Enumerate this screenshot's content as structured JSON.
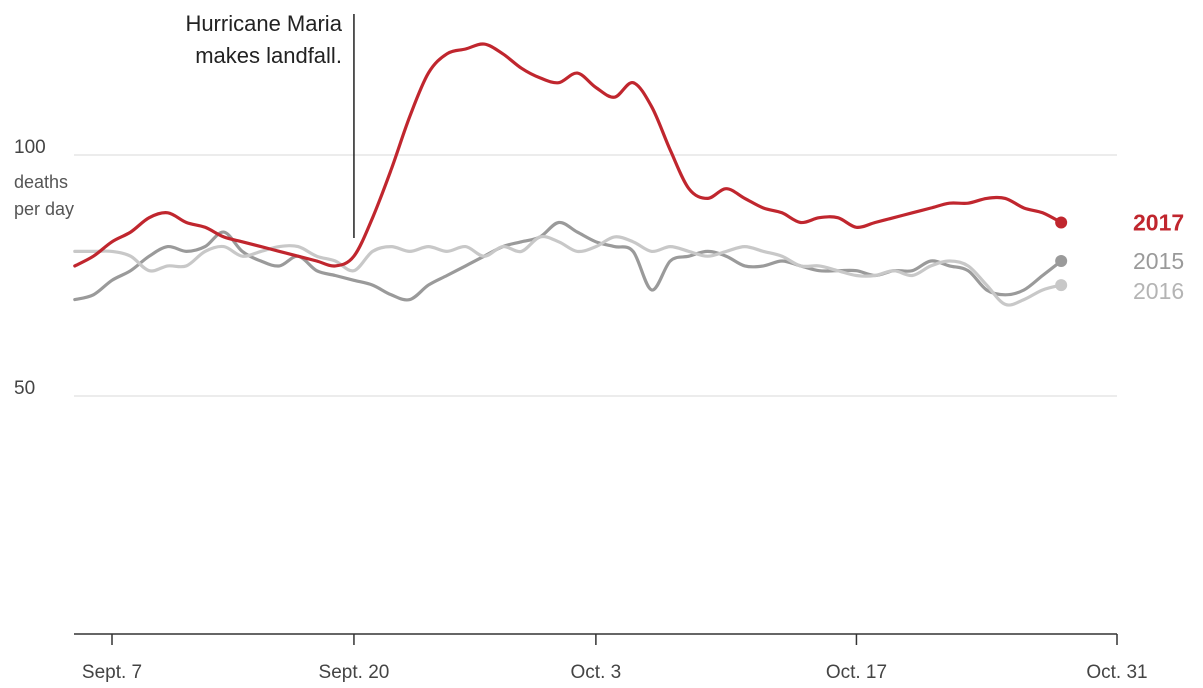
{
  "chart_data": {
    "type": "line",
    "ylabel_unit": [
      "deaths",
      "per day"
    ],
    "y_ticks": [
      50,
      100
    ],
    "ylim": [
      0,
      130
    ],
    "x_ticks": [
      {
        "day": 5,
        "label": "Sept. 7"
      },
      {
        "day": 18,
        "label": "Sept. 20"
      },
      {
        "day": 31,
        "label": "Oct. 3"
      },
      {
        "day": 45,
        "label": "Oct. 17"
      },
      {
        "day": 59,
        "label": "Oct. 31"
      }
    ],
    "xlim": [
      3,
      59
    ],
    "grid": true,
    "annotation": {
      "day": 18,
      "lines": [
        "Hurricane Maria",
        "makes landfall."
      ]
    },
    "series": [
      {
        "name": "2015",
        "color": "#9a9a9a",
        "points": [
          [
            3,
            70
          ],
          [
            4,
            71
          ],
          [
            5,
            74
          ],
          [
            6,
            76
          ],
          [
            7,
            79
          ],
          [
            8,
            81
          ],
          [
            9,
            80
          ],
          [
            10,
            81
          ],
          [
            11,
            84
          ],
          [
            12,
            80
          ],
          [
            13,
            78
          ],
          [
            14,
            77
          ],
          [
            15,
            79
          ],
          [
            16,
            76
          ],
          [
            17,
            75
          ],
          [
            18,
            74
          ],
          [
            19,
            73
          ],
          [
            20,
            71
          ],
          [
            21,
            70
          ],
          [
            22,
            73
          ],
          [
            23,
            75
          ],
          [
            24,
            77
          ],
          [
            25,
            79
          ],
          [
            26,
            81
          ],
          [
            27,
            82
          ],
          [
            28,
            83
          ],
          [
            29,
            86
          ],
          [
            30,
            84
          ],
          [
            31,
            82
          ],
          [
            32,
            81
          ],
          [
            33,
            80
          ],
          [
            34,
            72
          ],
          [
            35,
            78
          ],
          [
            36,
            79
          ],
          [
            37,
            80
          ],
          [
            38,
            79
          ],
          [
            39,
            77
          ],
          [
            40,
            77
          ],
          [
            41,
            78
          ],
          [
            42,
            77
          ],
          [
            43,
            76
          ],
          [
            44,
            76
          ],
          [
            45,
            76
          ],
          [
            46,
            75
          ],
          [
            47,
            76
          ],
          [
            48,
            76
          ],
          [
            49,
            78
          ],
          [
            50,
            77
          ],
          [
            51,
            76
          ],
          [
            52,
            72
          ],
          [
            53,
            71
          ],
          [
            54,
            72
          ],
          [
            55,
            75
          ],
          [
            56,
            78
          ]
        ]
      },
      {
        "name": "2016",
        "color": "#c8c8c8",
        "points": [
          [
            3,
            80
          ],
          [
            4,
            80
          ],
          [
            5,
            80
          ],
          [
            6,
            79
          ],
          [
            7,
            76
          ],
          [
            8,
            77
          ],
          [
            9,
            77
          ],
          [
            10,
            80
          ],
          [
            11,
            81
          ],
          [
            12,
            79
          ],
          [
            13,
            80
          ],
          [
            14,
            81
          ],
          [
            15,
            81
          ],
          [
            16,
            79
          ],
          [
            17,
            78
          ],
          [
            18,
            76
          ],
          [
            19,
            80
          ],
          [
            20,
            81
          ],
          [
            21,
            80
          ],
          [
            22,
            81
          ],
          [
            23,
            80
          ],
          [
            24,
            81
          ],
          [
            25,
            79
          ],
          [
            26,
            81
          ],
          [
            27,
            80
          ],
          [
            28,
            83
          ],
          [
            29,
            82
          ],
          [
            30,
            80
          ],
          [
            31,
            81
          ],
          [
            32,
            83
          ],
          [
            33,
            82
          ],
          [
            34,
            80
          ],
          [
            35,
            81
          ],
          [
            36,
            80
          ],
          [
            37,
            79
          ],
          [
            38,
            80
          ],
          [
            39,
            81
          ],
          [
            40,
            80
          ],
          [
            41,
            79
          ],
          [
            42,
            77
          ],
          [
            43,
            77
          ],
          [
            44,
            76
          ],
          [
            45,
            75
          ],
          [
            46,
            75
          ],
          [
            47,
            76
          ],
          [
            48,
            75
          ],
          [
            49,
            77
          ],
          [
            50,
            78
          ],
          [
            51,
            77
          ],
          [
            52,
            73
          ],
          [
            53,
            69
          ],
          [
            54,
            70
          ],
          [
            55,
            72
          ],
          [
            56,
            73
          ]
        ]
      },
      {
        "name": "2017",
        "color": "#c0262e",
        "points": [
          [
            3,
            77
          ],
          [
            4,
            79
          ],
          [
            5,
            82
          ],
          [
            6,
            84
          ],
          [
            7,
            87
          ],
          [
            8,
            88
          ],
          [
            9,
            86
          ],
          [
            10,
            85
          ],
          [
            11,
            83
          ],
          [
            12,
            82
          ],
          [
            13,
            81
          ],
          [
            14,
            80
          ],
          [
            15,
            79
          ],
          [
            16,
            78
          ],
          [
            17,
            77
          ],
          [
            18,
            79
          ],
          [
            19,
            87
          ],
          [
            20,
            97
          ],
          [
            21,
            108
          ],
          [
            22,
            117
          ],
          [
            23,
            121
          ],
          [
            24,
            122
          ],
          [
            25,
            123
          ],
          [
            26,
            121
          ],
          [
            27,
            118
          ],
          [
            28,
            116
          ],
          [
            29,
            115
          ],
          [
            30,
            117
          ],
          [
            31,
            114
          ],
          [
            32,
            112
          ],
          [
            33,
            115
          ],
          [
            34,
            110
          ],
          [
            35,
            101
          ],
          [
            36,
            93
          ],
          [
            37,
            91
          ],
          [
            38,
            93
          ],
          [
            39,
            91
          ],
          [
            40,
            89
          ],
          [
            41,
            88
          ],
          [
            42,
            86
          ],
          [
            43,
            87
          ],
          [
            44,
            87
          ],
          [
            45,
            85
          ],
          [
            46,
            86
          ],
          [
            47,
            87
          ],
          [
            48,
            88
          ],
          [
            49,
            89
          ],
          [
            50,
            90
          ],
          [
            51,
            90
          ],
          [
            52,
            91
          ],
          [
            53,
            91
          ],
          [
            54,
            89
          ],
          [
            55,
            88
          ],
          [
            56,
            86
          ]
        ]
      }
    ],
    "series_labels": [
      {
        "name": "2017",
        "color": "#c0262e",
        "bold": true
      },
      {
        "name": "2015",
        "color": "#9a9a9a",
        "bold": false
      },
      {
        "name": "2016",
        "color": "#b4b4b4",
        "bold": false
      }
    ]
  }
}
